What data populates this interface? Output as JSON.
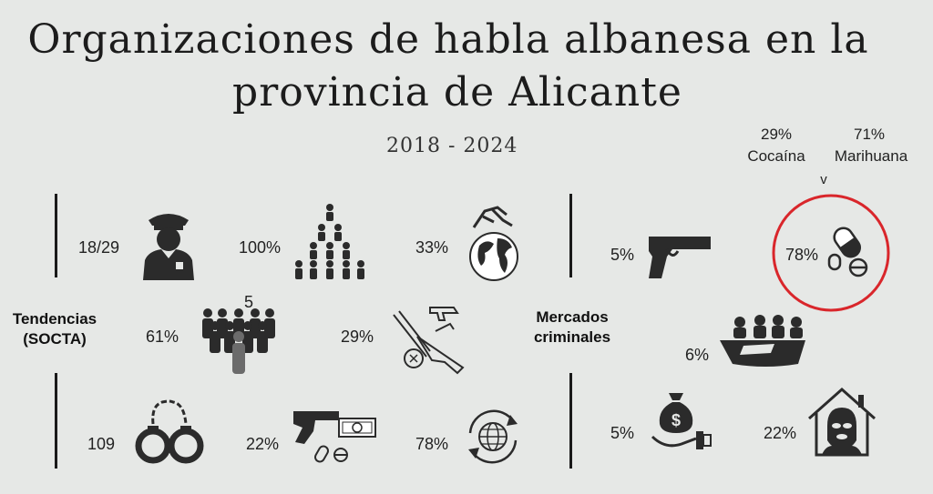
{
  "title": {
    "line1": "Organizaciones de habla albanesa en la",
    "line2": "provincia de Alicante",
    "years": "2018 - 2024"
  },
  "sections": {
    "left_label": "Tendencias (SOCTA)",
    "right_label": "Mercados criminales"
  },
  "tendencias": [
    {
      "value": "18/29",
      "icon": "police-officer-icon"
    },
    {
      "value": "100%",
      "icon": "hierarchy-pyramid-icon"
    },
    {
      "value": "33%",
      "icon": "handshake-globe-icon"
    },
    {
      "value": "61%",
      "icon": "crowd-icon",
      "extra": "5"
    },
    {
      "value": "29%",
      "icon": "weapons-arsenal-icon"
    },
    {
      "value": "109",
      "icon": "handcuffs-icon"
    },
    {
      "value": "22%",
      "icon": "gun-drugs-money-icon"
    },
    {
      "value": "78%",
      "icon": "globe-arrows-icon"
    }
  ],
  "mercados": [
    {
      "value": "5%",
      "icon": "pistol-icon"
    },
    {
      "value": "78%",
      "icon": "pills-icon",
      "highlight": "#d9262b"
    },
    {
      "value": "6%",
      "icon": "migrant-boat-icon"
    },
    {
      "value": "5%",
      "icon": "money-bag-hand-icon"
    },
    {
      "value": "22%",
      "icon": "kidnapper-house-icon"
    }
  ],
  "drugs": {
    "cocaina_pct": "29%",
    "cocaina_label": "Cocaína",
    "marihuana_pct": "71%",
    "marihuana_label": "Marihuana",
    "pointer": "v"
  },
  "colors": {
    "background": "#e6e8e6",
    "icon": "#2b2b2b",
    "highlight": "#d9262b"
  }
}
